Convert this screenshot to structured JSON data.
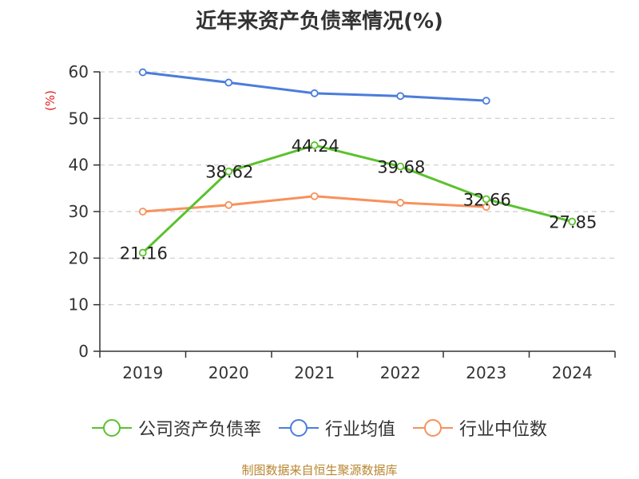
{
  "chart_data": {
    "type": "line",
    "title": "近年来资产负债率情况(%)",
    "ylabel": "(%)",
    "categories": [
      "2019",
      "2020",
      "2021",
      "2022",
      "2023",
      "2024"
    ],
    "yticks": [
      "0",
      "10",
      "20",
      "30",
      "40",
      "50",
      "60"
    ],
    "ylim": [
      0,
      60
    ],
    "grid": true,
    "legend_position": "bottom",
    "series": [
      {
        "name": "公司资产负债率",
        "color": "#5ac22d",
        "values": [
          21.16,
          38.62,
          44.24,
          39.68,
          32.66,
          27.85
        ],
        "labels": [
          "21.16",
          "38.62",
          "44.24",
          "39.68",
          "32.66",
          "27.85"
        ]
      },
      {
        "name": "行业均值",
        "color": "#4a7ddb",
        "values": [
          59.9,
          57.7,
          55.4,
          54.8,
          53.8,
          null
        ]
      },
      {
        "name": "行业中位数",
        "color": "#f7915c",
        "values": [
          30.0,
          31.4,
          33.3,
          31.9,
          31.0,
          null
        ]
      }
    ]
  },
  "footer": {
    "source": "制图数据来自恒生聚源数据库"
  }
}
